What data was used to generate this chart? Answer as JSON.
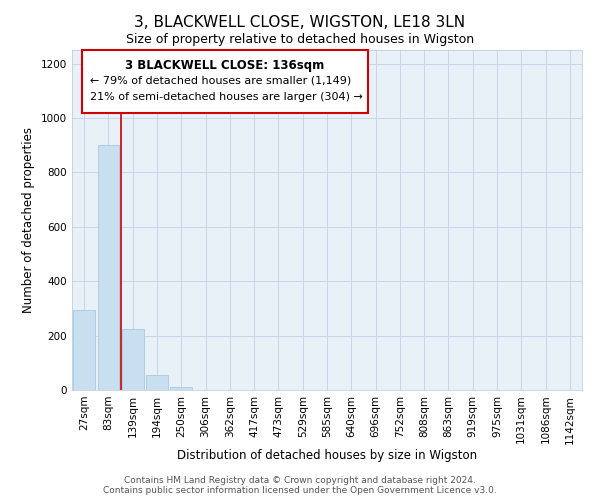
{
  "title": "3, BLACKWELL CLOSE, WIGSTON, LE18 3LN",
  "subtitle": "Size of property relative to detached houses in Wigston",
  "xlabel": "Distribution of detached houses by size in Wigston",
  "ylabel": "Number of detached properties",
  "bar_labels": [
    "27sqm",
    "83sqm",
    "139sqm",
    "194sqm",
    "250sqm",
    "306sqm",
    "362sqm",
    "417sqm",
    "473sqm",
    "529sqm",
    "585sqm",
    "640sqm",
    "696sqm",
    "752sqm",
    "808sqm",
    "863sqm",
    "919sqm",
    "975sqm",
    "1031sqm",
    "1086sqm",
    "1142sqm"
  ],
  "bar_heights": [
    295,
    900,
    225,
    55,
    10,
    0,
    0,
    0,
    0,
    0,
    0,
    0,
    0,
    0,
    0,
    0,
    0,
    0,
    0,
    0,
    0
  ],
  "bar_color": "#c8dff0",
  "bar_edgecolor": "#a0c4dc",
  "property_line_color": "#cc0000",
  "property_line_x": 1.5,
  "ylim": [
    0,
    1250
  ],
  "yticks": [
    0,
    200,
    400,
    600,
    800,
    1000,
    1200
  ],
  "annotation_title": "3 BLACKWELL CLOSE: 136sqm",
  "annotation_line1": "← 79% of detached houses are smaller (1,149)",
  "annotation_line2": "21% of semi-detached houses are larger (304) →",
  "annotation_box_color": "#ffffff",
  "annotation_box_edgecolor": "#cc0000",
  "footer_line1": "Contains HM Land Registry data © Crown copyright and database right 2024.",
  "footer_line2": "Contains public sector information licensed under the Open Government Licence v3.0.",
  "background_color": "#ffffff",
  "plot_bg_color": "#e8f0f8",
  "grid_color": "#c8d4e8",
  "title_fontsize": 11,
  "subtitle_fontsize": 9,
  "axis_label_fontsize": 8.5,
  "tick_fontsize": 7.5,
  "annotation_fontsize": 8,
  "footer_fontsize": 6.5
}
